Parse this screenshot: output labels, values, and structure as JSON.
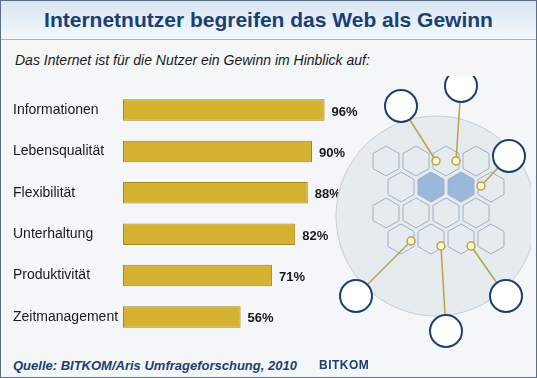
{
  "chart_data": {
    "type": "bar",
    "title": "Internetnutzer begreifen das Web als Gewinn",
    "subtitle": "Das Internet ist für die Nutzer ein Gewinn im Hinblick auf:",
    "categories": [
      "Informationen",
      "Lebensqualität",
      "Flexibilität",
      "Unterhaltung",
      "Produktivität",
      "Zeitmanagement"
    ],
    "values": [
      96,
      90,
      88,
      82,
      71,
      56
    ],
    "value_labels": [
      "96%",
      "90%",
      "88%",
      "82%",
      "71%",
      "56%"
    ],
    "color": "#d6b232",
    "orientation": "horizontal",
    "xlim": [
      0,
      100
    ],
    "grid": false,
    "data_labels": true,
    "tick_labels": "y",
    "annotations": [
      "Quelle: BITKOM/Aris Umfrageforschung, 2010",
      "BITKOM"
    ]
  }
}
